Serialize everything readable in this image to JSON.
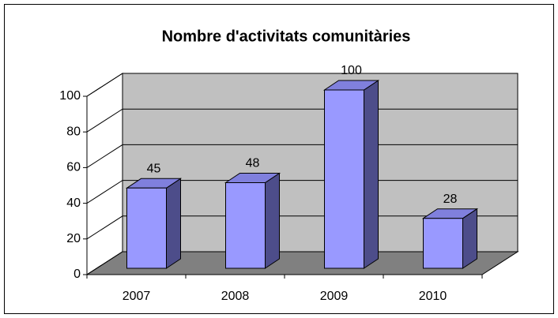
{
  "chart_data": {
    "type": "bar3d",
    "title": "Nombre d'activitats comunitàries",
    "categories": [
      "2007",
      "2008",
      "2009",
      "2010"
    ],
    "values": [
      45,
      48,
      100,
      28
    ],
    "color": "#9999ff",
    "ylim": [
      0,
      100
    ],
    "yticks": [
      0,
      20,
      40,
      60,
      80,
      100
    ],
    "grid": true
  }
}
